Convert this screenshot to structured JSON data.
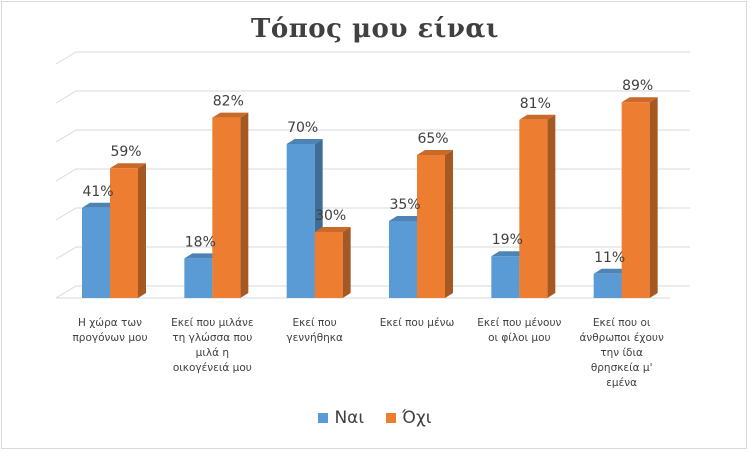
{
  "chart_data": {
    "type": "bar",
    "title": "Τόπος μου είναι",
    "categories": [
      [
        "Η χώρα των",
        "προγόνων μου"
      ],
      [
        "Εκεί που μιλάνε",
        "τη γλώσσα που",
        "μιλά η",
        "οικογένειά μου"
      ],
      [
        "Εκεί που",
        "γεννήθηκα"
      ],
      [
        "Εκεί που μένω"
      ],
      [
        "Εκεί που μένουν",
        "οι φίλοι μου"
      ],
      [
        "Εκεί που οι",
        "άνθρωποι έχουν",
        "την ίδια",
        "θρησκεία μ'",
        "εμένα"
      ]
    ],
    "series": [
      {
        "name": "Ναι",
        "values": [
          41,
          18,
          70,
          35,
          19,
          11
        ],
        "labels": [
          "41%",
          "18%",
          "70%",
          "35%",
          "19%",
          "11%"
        ],
        "color": "#5b9bd5"
      },
      {
        "name": "Όχι",
        "values": [
          59,
          82,
          30,
          65,
          81,
          89
        ],
        "labels": [
          "59%",
          "82%",
          "30%",
          "65%",
          "81%",
          "89%"
        ],
        "color": "#ed7d31"
      }
    ],
    "ylim": [
      0,
      100
    ],
    "grid": true,
    "legend_position": "bottom",
    "xlabel": "",
    "ylabel": ""
  }
}
